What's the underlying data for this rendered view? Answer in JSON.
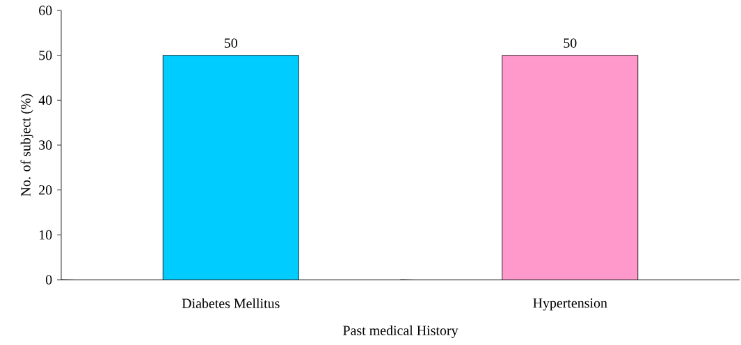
{
  "chart_data": {
    "type": "bar",
    "xlabel": "Past medical History",
    "ylabel": "No. of subject (%)",
    "categories": [
      "Diabetes Mellitus",
      "Hypertension"
    ],
    "values": [
      50,
      50
    ],
    "colors": [
      "#00ccff",
      "#ff99cc"
    ],
    "ylim": [
      0,
      60
    ],
    "yticks": [
      0,
      10,
      20,
      30,
      40,
      50,
      60
    ],
    "data_labels": true
  }
}
